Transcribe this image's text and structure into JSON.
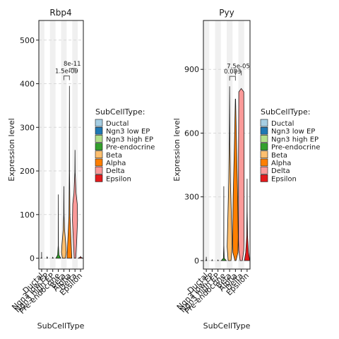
{
  "legend_title": "SubCellType:",
  "chart_data": [
    {
      "type": "violin",
      "title": "Rbp4",
      "xlabel": "SubCellType",
      "ylabel": "Expression level",
      "categories": [
        "Ductal",
        "Ngn3 low EP",
        "Ngn3 high EP",
        "Pre-endocrine",
        "Beta",
        "Alpha",
        "Delta",
        "Epsilon"
      ],
      "ylim": [
        -25,
        545
      ],
      "yticks": [
        0,
        100,
        200,
        300,
        400,
        500
      ],
      "max_values": [
        14,
        3,
        2,
        146,
        165,
        395,
        248,
        4
      ],
      "grid": "horizontal dashed",
      "annotations": [
        {
          "text": "1.5e-09",
          "from": "Beta",
          "to": "Alpha",
          "level": 1
        },
        {
          "text": "8e-11",
          "from": "Alpha",
          "to": "Delta",
          "level": 2
        }
      ]
    },
    {
      "type": "violin",
      "title": "Pyy",
      "xlabel": "SubCellType",
      "ylabel": "Expression level",
      "categories": [
        "Ductal",
        "Ngn3 low EP",
        "Ngn3 high EP",
        "Pre-endocrine",
        "Beta",
        "Alpha",
        "Delta",
        "Epsilon"
      ],
      "ylim": [
        -40,
        1130
      ],
      "yticks": [
        0,
        300,
        600,
        900
      ],
      "max_values": [
        18,
        4,
        3,
        350,
        820,
        760,
        810,
        385
      ],
      "grid": "horizontal dashed",
      "annotations": [
        {
          "text": "0.083",
          "from": "Beta",
          "to": "Alpha",
          "level": 1
        },
        {
          "text": "7.5e-05",
          "from": "Alpha",
          "to": "Delta",
          "level": 2
        }
      ]
    }
  ],
  "legend": [
    {
      "label": "Ductal",
      "color": "#a6cee3"
    },
    {
      "label": "Ngn3 low EP",
      "color": "#1f78b4"
    },
    {
      "label": "Ngn3 high EP",
      "color": "#b2df8a"
    },
    {
      "label": "Pre-endocrine",
      "color": "#33a02c"
    },
    {
      "label": "Beta",
      "color": "#fdbf6f"
    },
    {
      "label": "Alpha",
      "color": "#ff7f00"
    },
    {
      "label": "Delta",
      "color": "#fb9a99"
    },
    {
      "label": "Epsilon",
      "color": "#e31a1c"
    }
  ]
}
